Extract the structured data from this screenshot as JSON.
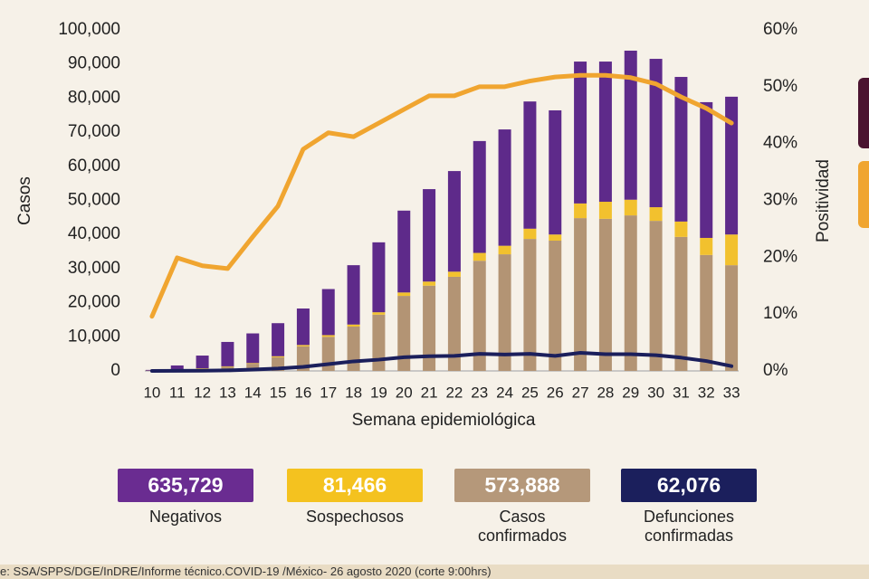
{
  "chart_data": {
    "type": "bar",
    "stacked": true,
    "x_label": "Semana epidemiológica",
    "y_label": "Casos",
    "y2_label": "Positividad",
    "categories": [
      "10",
      "11",
      "12",
      "13",
      "14",
      "15",
      "16",
      "17",
      "18",
      "19",
      "20",
      "21",
      "22",
      "23",
      "24",
      "25",
      "26",
      "27",
      "28",
      "29",
      "30",
      "31",
      "32",
      "33"
    ],
    "ylim": [
      0,
      100000
    ],
    "yticks": [
      0,
      {
        "value": 10000,
        "label": "10,000"
      },
      {
        "value": 20000,
        "label": "20,000"
      },
      {
        "value": 30000,
        "label": "30,000"
      },
      {
        "value": 40000,
        "label": "40,000"
      },
      {
        "value": 50000,
        "label": "50,000"
      },
      {
        "value": 60000,
        "label": "60,000"
      },
      {
        "value": 70000,
        "label": "70,000"
      },
      {
        "value": 80000,
        "label": "80,000"
      },
      {
        "value": 90000,
        "label": "90,000"
      },
      {
        "value": 100000,
        "label": "100,000"
      }
    ],
    "y2lim": [
      0,
      60
    ],
    "y2ticks": [
      {
        "value": 0,
        "label": "0%"
      },
      {
        "value": 10,
        "label": "10%"
      },
      {
        "value": 20,
        "label": "20%"
      },
      {
        "value": 30,
        "label": "30%"
      },
      {
        "value": 40,
        "label": "40%"
      },
      {
        "value": 50,
        "label": "50%"
      },
      {
        "value": 60,
        "label": "60%"
      }
    ],
    "series": [
      {
        "color": "#b39474",
        "values": [
          100,
          300,
          700,
          1200,
          2100,
          4000,
          7200,
          10000,
          13000,
          16500,
          22000,
          25000,
          27600,
          32300,
          34200,
          38700,
          38200,
          44800,
          44600,
          45600,
          44000,
          39300,
          34000,
          31000
        ]
      },
      {
        "color": "#f2c12e",
        "values": [
          0,
          50,
          100,
          150,
          200,
          300,
          400,
          500,
          600,
          700,
          1000,
          1200,
          1500,
          2300,
          2500,
          3000,
          1800,
          4300,
          5000,
          4600,
          4000,
          4500,
          5000,
          9000
        ]
      },
      {
        "color": "#5e2a8a",
        "values": [
          200,
          1250,
          3700,
          7150,
          8700,
          9700,
          10700,
          13500,
          17400,
          20500,
          24000,
          27100,
          29500,
          32800,
          34100,
          37300,
          36400,
          41600,
          41100,
          43700,
          43500,
          42400,
          39800,
          40400
        ]
      },
      {
        "type": "line",
        "color": "#1b1f5c",
        "values": [
          0,
          20,
          50,
          150,
          400,
          700,
          1200,
          2000,
          2800,
          3300,
          4000,
          4300,
          4400,
          5000,
          4800,
          5000,
          4400,
          5300,
          4900,
          4900,
          4600,
          3900,
          2900,
          1400
        ]
      },
      {
        "type": "line",
        "axis": "y2",
        "color": "#f0a530",
        "values": [
          9.6,
          19.9,
          18.5,
          18,
          23.6,
          29,
          39,
          41.9,
          41.2,
          43.6,
          46,
          48.4,
          48.4,
          50,
          50,
          51,
          51.7,
          52,
          52,
          51.6,
          50.5,
          48.2,
          46.2,
          43.6
        ]
      }
    ]
  },
  "summary": [
    {
      "value": "635,729",
      "label": "Negativos",
      "color": "#6a2c91"
    },
    {
      "value": "81,466",
      "label": "Sospechosos",
      "color": "#f4c21f"
    },
    {
      "value": "573,888",
      "label": "Casos confirmados",
      "color": "#b5987a"
    },
    {
      "value": "62,076",
      "label": "Defunciones confirmadas",
      "color": "#1b1f5c"
    }
  ],
  "source": "e: SSA/SPPS/DGE/InDRE/Informe técnico.COVID-19 /México- 26 agosto 2020 (corte 9:00hrs)"
}
